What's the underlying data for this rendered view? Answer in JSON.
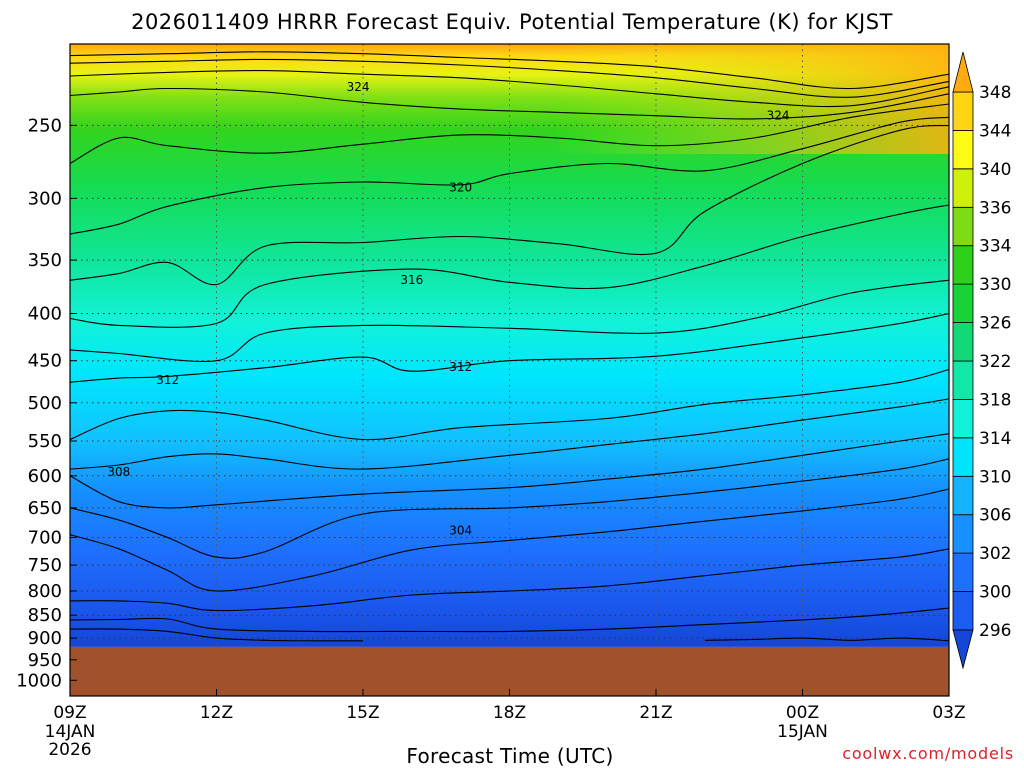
{
  "chart_data": {
    "type": "heatmap",
    "title": "2026011409 HRRR Forecast Equiv. Potential Temperature (K) for KJST",
    "xlabel": "Forecast Time (UTC)",
    "ylabel": "",
    "x_ticks": [
      {
        "hour": 0,
        "label": "09Z",
        "sub1": "14JAN",
        "sub2": "2026"
      },
      {
        "hour": 3,
        "label": "12Z",
        "sub1": "",
        "sub2": ""
      },
      {
        "hour": 6,
        "label": "15Z",
        "sub1": "",
        "sub2": ""
      },
      {
        "hour": 9,
        "label": "18Z",
        "sub1": "",
        "sub2": ""
      },
      {
        "hour": 12,
        "label": "21Z",
        "sub1": "",
        "sub2": ""
      },
      {
        "hour": 15,
        "label": "00Z",
        "sub1": "15JAN",
        "sub2": ""
      },
      {
        "hour": 18,
        "label": "03Z",
        "sub1": "",
        "sub2": ""
      }
    ],
    "y_ticks": [
      250,
      300,
      350,
      400,
      450,
      500,
      550,
      600,
      650,
      700,
      750,
      800,
      850,
      900,
      950,
      1000
    ],
    "ylim_hPa": [
      1040,
      204
    ],
    "xlim_hours": [
      0,
      18
    ],
    "y_scale": "log-pressure",
    "surface_pressure_hPa": 920,
    "grid": "dotted",
    "colorbar": {
      "levels": [
        296,
        300,
        302,
        306,
        310,
        314,
        318,
        322,
        326,
        330,
        334,
        336,
        340,
        344,
        348
      ],
      "colors": [
        "#1446d8",
        "#1b5df0",
        "#1e70ff",
        "#1890ff",
        "#12b4ff",
        "#00e4ff",
        "#12f2d8",
        "#10e8a8",
        "#11d977",
        "#18d238",
        "#2ed01c",
        "#7edc14",
        "#cef00a",
        "#fffa14",
        "#ffd410",
        "#ffaa10"
      ]
    },
    "contours": [
      {
        "label": "296",
        "points": [
          [
            0,
            880
          ],
          [
            1,
            880
          ],
          [
            2,
            885
          ],
          [
            3,
            900
          ],
          [
            4,
            905
          ],
          [
            5,
            906
          ],
          [
            6,
            906
          ]
        ]
      },
      {
        "label": "296",
        "points": [
          [
            13,
            905
          ],
          [
            14,
            903
          ],
          [
            15,
            900
          ],
          [
            16,
            905
          ],
          [
            17,
            900
          ],
          [
            18,
            906
          ]
        ]
      },
      {
        "label": "300",
        "points": [
          [
            0,
            860
          ],
          [
            1,
            859
          ],
          [
            2,
            858
          ],
          [
            3,
            880
          ],
          [
            5,
            885
          ],
          [
            7,
            885
          ],
          [
            9,
            885
          ],
          [
            11,
            880
          ],
          [
            13,
            870
          ],
          [
            15,
            860
          ],
          [
            16.5,
            850
          ],
          [
            18,
            835
          ]
        ]
      },
      {
        "label": "302",
        "points": [
          [
            0,
            820
          ],
          [
            1,
            820
          ],
          [
            2,
            825
          ],
          [
            3,
            840
          ],
          [
            5,
            830
          ],
          [
            7,
            808
          ],
          [
            9,
            800
          ],
          [
            11,
            790
          ],
          [
            13,
            770
          ],
          [
            15,
            750
          ],
          [
            17,
            735
          ],
          [
            18,
            720
          ]
        ]
      },
      {
        "label": "304",
        "points": [
          [
            0,
            695
          ],
          [
            1,
            720
          ],
          [
            2,
            760
          ],
          [
            3,
            800
          ],
          [
            5,
            770
          ],
          [
            7,
            722
          ],
          [
            9,
            705
          ],
          [
            11,
            690
          ],
          [
            13,
            672
          ],
          [
            15,
            655
          ],
          [
            17,
            636
          ],
          [
            18,
            620
          ]
        ]
      },
      {
        "label": "304",
        "points": [
          [
            0,
            650
          ],
          [
            1,
            670
          ],
          [
            2,
            700
          ],
          [
            3,
            735
          ],
          [
            4,
            725
          ],
          [
            6,
            660
          ],
          [
            9,
            650
          ],
          [
            11,
            640
          ],
          [
            13,
            625
          ],
          [
            15,
            608
          ],
          [
            17,
            590
          ],
          [
            18,
            575
          ]
        ]
      },
      {
        "label": "308",
        "points": [
          [
            0,
            600
          ],
          [
            1,
            640
          ],
          [
            2,
            650
          ],
          [
            3,
            645
          ],
          [
            6,
            628
          ],
          [
            9,
            618
          ],
          [
            11,
            605
          ],
          [
            13,
            590
          ],
          [
            15,
            570
          ],
          [
            17,
            550
          ],
          [
            18,
            540
          ]
        ]
      },
      {
        "label": "308",
        "points": [
          [
            0,
            590
          ],
          [
            1,
            584
          ],
          [
            2,
            572
          ],
          [
            3,
            568
          ],
          [
            4,
            575
          ],
          [
            6,
            590
          ],
          [
            9,
            570
          ],
          [
            11,
            555
          ],
          [
            13,
            540
          ],
          [
            15,
            522
          ],
          [
            17,
            505
          ],
          [
            18,
            495
          ]
        ]
      },
      {
        "label": "310",
        "points": [
          [
            0,
            548
          ],
          [
            1,
            520
          ],
          [
            2,
            510
          ],
          [
            3,
            512
          ],
          [
            4,
            522
          ],
          [
            6,
            548
          ],
          [
            8,
            532
          ],
          [
            11,
            520
          ],
          [
            13,
            502
          ],
          [
            15,
            490
          ],
          [
            17,
            475
          ],
          [
            18,
            460
          ]
        ]
      },
      {
        "label": "312",
        "points": [
          [
            0,
            475
          ],
          [
            1,
            470
          ],
          [
            2,
            468
          ],
          [
            4,
            458
          ],
          [
            6,
            446
          ],
          [
            7,
            462
          ],
          [
            9,
            450
          ],
          [
            12,
            445
          ],
          [
            15,
            425
          ],
          [
            17,
            410
          ],
          [
            18,
            400
          ]
        ]
      },
      {
        "label": "314",
        "points": [
          [
            0,
            438
          ],
          [
            1,
            442
          ],
          [
            3,
            450
          ],
          [
            4,
            420
          ],
          [
            6,
            412
          ],
          [
            9,
            415
          ],
          [
            12,
            420
          ],
          [
            14,
            405
          ],
          [
            16,
            380
          ],
          [
            18,
            368
          ]
        ]
      },
      {
        "label": "316",
        "points": [
          [
            0,
            405
          ],
          [
            1,
            412
          ],
          [
            3,
            410
          ],
          [
            4,
            372
          ],
          [
            7,
            358
          ],
          [
            9,
            370
          ],
          [
            11,
            375
          ],
          [
            13,
            355
          ],
          [
            15,
            330
          ],
          [
            17,
            312
          ],
          [
            18,
            305
          ]
        ]
      },
      {
        "label": "318",
        "points": [
          [
            0,
            368
          ],
          [
            1,
            362
          ],
          [
            2,
            352
          ],
          [
            3,
            372
          ],
          [
            4,
            338
          ],
          [
            6,
            335
          ],
          [
            8,
            330
          ],
          [
            10,
            336
          ],
          [
            12,
            344
          ],
          [
            13,
            310
          ],
          [
            15,
            275
          ],
          [
            17,
            253
          ],
          [
            18,
            250
          ]
        ]
      },
      {
        "label": "320",
        "points": [
          [
            0,
            328
          ],
          [
            1,
            320
          ],
          [
            2,
            306
          ],
          [
            4,
            292
          ],
          [
            6,
            288
          ],
          [
            8,
            290
          ],
          [
            9,
            282
          ],
          [
            11,
            275
          ],
          [
            13,
            280
          ],
          [
            15,
            265
          ],
          [
            17,
            248
          ],
          [
            18,
            245
          ]
        ]
      },
      {
        "label": "322",
        "points": [
          [
            0,
            275
          ],
          [
            1,
            258
          ],
          [
            2,
            263
          ],
          [
            4,
            268
          ],
          [
            6,
            262
          ],
          [
            8,
            256
          ],
          [
            10,
            258
          ],
          [
            12,
            263
          ],
          [
            14,
            258
          ],
          [
            16,
            245
          ],
          [
            18,
            237
          ]
        ]
      },
      {
        "label": "324",
        "points": [
          [
            0,
            232
          ],
          [
            1,
            230
          ],
          [
            2,
            228
          ],
          [
            4,
            230
          ],
          [
            6,
            236
          ],
          [
            8,
            240
          ],
          [
            10,
            242
          ],
          [
            12,
            244
          ],
          [
            14,
            246
          ],
          [
            16,
            242
          ],
          [
            18,
            231
          ]
        ]
      },
      {
        "label": "326",
        "points": [
          [
            0,
            221
          ],
          [
            2,
            219
          ],
          [
            4,
            218
          ],
          [
            6,
            220
          ],
          [
            8,
            222
          ],
          [
            10,
            226
          ],
          [
            12,
            231
          ],
          [
            14,
            236
          ],
          [
            16,
            238
          ],
          [
            18,
            227
          ]
        ]
      },
      {
        "label": "328",
        "points": [
          [
            0,
            214
          ],
          [
            2,
            213
          ],
          [
            4,
            212
          ],
          [
            6,
            213
          ],
          [
            8,
            215
          ],
          [
            10,
            218
          ],
          [
            12,
            222
          ],
          [
            14,
            228
          ],
          [
            16,
            233
          ],
          [
            18,
            224
          ]
        ]
      },
      {
        "label": "330",
        "points": [
          [
            0,
            210
          ],
          [
            2,
            209
          ],
          [
            4,
            208
          ],
          [
            6,
            209
          ],
          [
            8,
            211
          ],
          [
            10,
            213
          ],
          [
            12,
            216
          ],
          [
            14,
            222
          ],
          [
            16,
            228
          ],
          [
            18,
            220
          ]
        ]
      }
    ],
    "contour_labels": [
      {
        "text": "324",
        "hour": 5.9,
        "hPa": 227
      },
      {
        "text": "324",
        "hour": 14.5,
        "hPa": 244
      },
      {
        "text": "320",
        "hour": 8.0,
        "hPa": 292
      },
      {
        "text": "316",
        "hour": 7.0,
        "hPa": 368
      },
      {
        "text": "312",
        "hour": 2.0,
        "hPa": 472
      },
      {
        "text": "312",
        "hour": 8.0,
        "hPa": 457
      },
      {
        "text": "308",
        "hour": 1.0,
        "hPa": 594
      },
      {
        "text": "304",
        "hour": 8.0,
        "hPa": 688
      }
    ]
  },
  "credit": "coolwx.com/models"
}
